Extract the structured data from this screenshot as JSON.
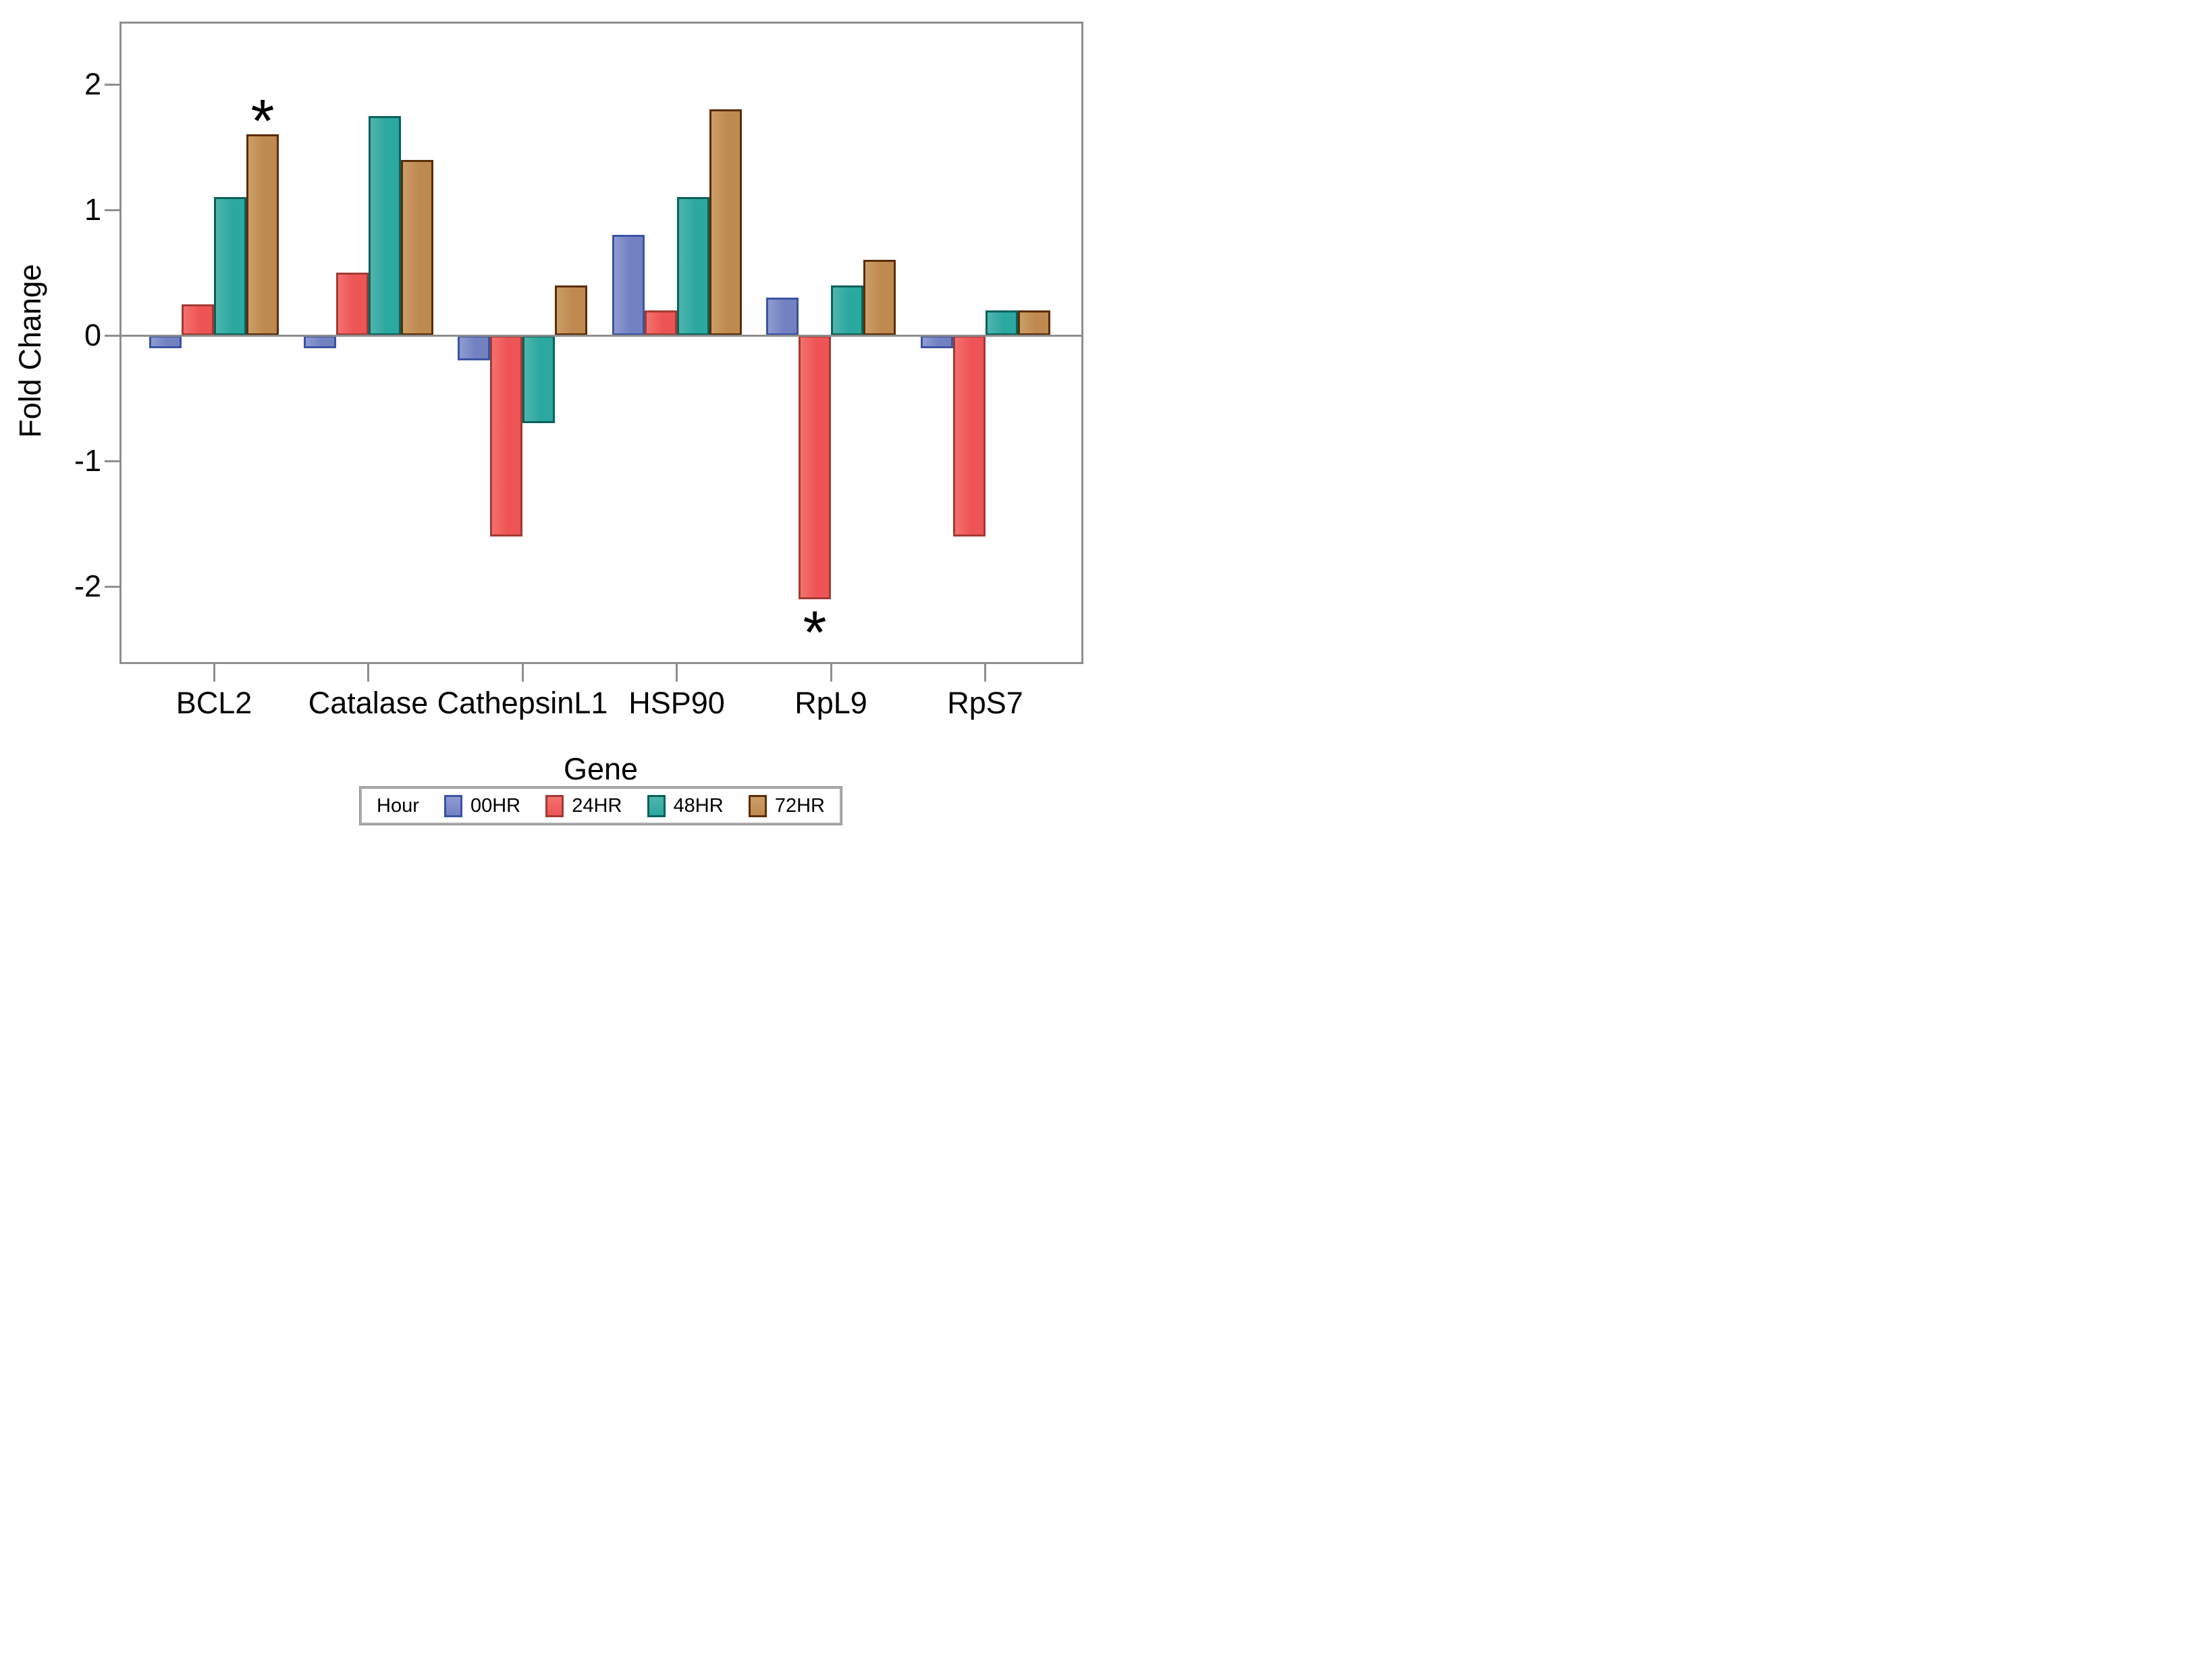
{
  "chart_data": {
    "type": "bar",
    "title": "",
    "xlabel": "Gene",
    "ylabel": "Fold Change",
    "categories": [
      "BCL2",
      "Catalase",
      "CathepsinL1",
      "HSP90",
      "RpL9",
      "RpS7"
    ],
    "series": [
      {
        "name": "00HR",
        "values": [
          -0.1,
          -0.1,
          -0.2,
          0.8,
          0.3,
          -0.1
        ],
        "fill": "#7282C1",
        "light": "#8F9CD2",
        "border": "#3A53A3"
      },
      {
        "name": "24HR",
        "values": [
          0.25,
          0.5,
          -1.6,
          0.2,
          -2.1,
          -1.6
        ],
        "fill": "#EE5455",
        "light": "#F4716E",
        "border": "#A23A34"
      },
      {
        "name": "48HR",
        "values": [
          1.1,
          1.75,
          -0.7,
          1.1,
          0.4,
          0.2
        ],
        "fill": "#2BA8A0",
        "light": "#4FB5AD",
        "border": "#0A615C"
      },
      {
        "name": "72HR",
        "values": [
          1.6,
          1.4,
          0.4,
          1.8,
          0.6,
          0.2
        ],
        "fill": "#BE8A50",
        "light": "#CC9E67",
        "border": "#5A2D06"
      }
    ],
    "yticks": [
      "2",
      "1",
      "0",
      "-1",
      "-2"
    ],
    "ylim": [
      -2.62,
      2.5
    ],
    "grid": false,
    "legend": {
      "title": "Hour",
      "position": "bottom",
      "entries": [
        "00HR",
        "24HR",
        "48HR",
        "72HR"
      ]
    },
    "annotations": [
      {
        "category": "BCL2",
        "series": "72HR",
        "symbol": "*",
        "position": "above"
      },
      {
        "category": "RpL9",
        "series": "24HR",
        "symbol": "*",
        "position": "below"
      }
    ]
  },
  "colors": {
    "axis": "#8E8E8E",
    "text": "#000000",
    "background": "#FFFFFF",
    "legend_border": "#ABABAB"
  }
}
